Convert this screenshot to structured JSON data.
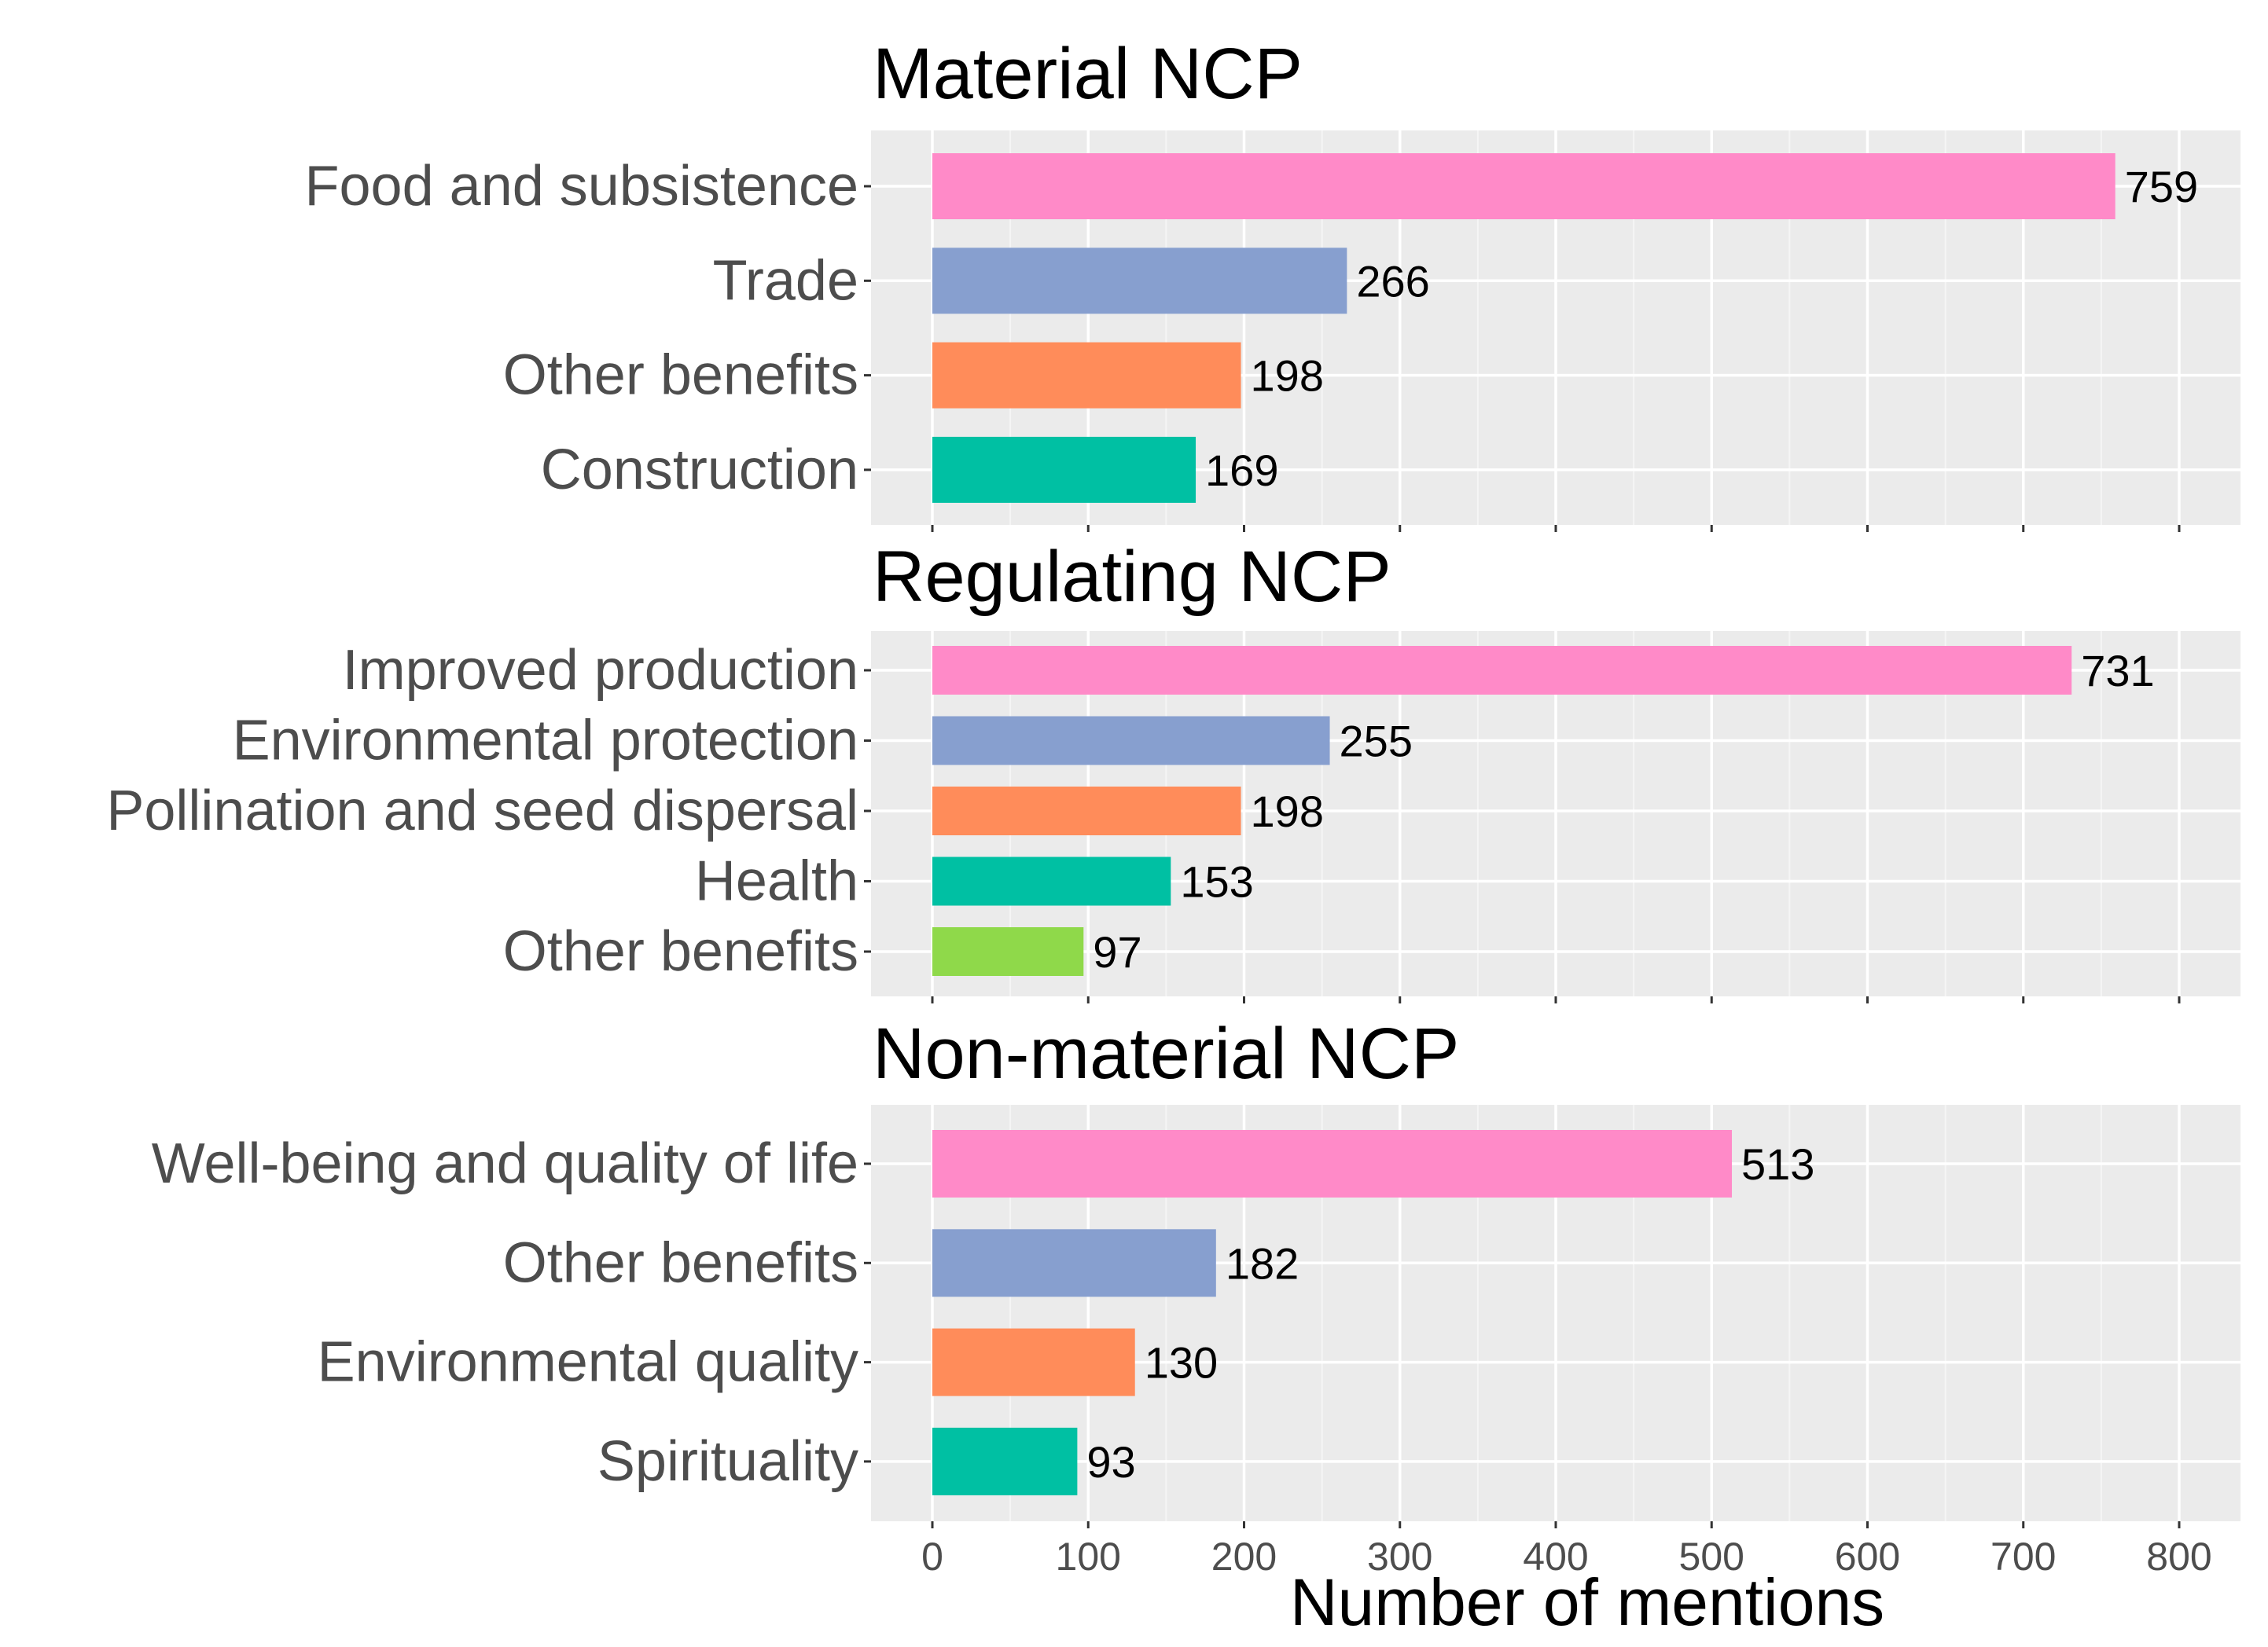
{
  "chart_data": {
    "type": "bar",
    "orientation": "horizontal",
    "xlabel": "Number of mentions",
    "xlim": [
      0,
      800
    ],
    "xticks": [
      0,
      100,
      200,
      300,
      400,
      500,
      600,
      700,
      800
    ],
    "grid": true,
    "colors": [
      "#ff8ac8",
      "#879fcf",
      "#ff8c5a",
      "#00c0a3",
      "#8fd94a"
    ],
    "panels": [
      {
        "title": "Material NCP",
        "categories": [
          "Food and subsistence",
          "Trade",
          "Other benefits",
          "Construction"
        ],
        "values": [
          759,
          266,
          198,
          169
        ]
      },
      {
        "title": "Regulating NCP",
        "categories": [
          "Improved production",
          "Environmental protection",
          "Pollination and seed dispersal",
          "Health",
          "Other benefits"
        ],
        "values": [
          731,
          255,
          198,
          153,
          97
        ]
      },
      {
        "title": "Non-material NCP",
        "categories": [
          "Well-being and quality of life",
          "Other benefits",
          "Environmental quality",
          "Spirituality"
        ],
        "values": [
          513,
          182,
          130,
          93
        ]
      }
    ]
  }
}
